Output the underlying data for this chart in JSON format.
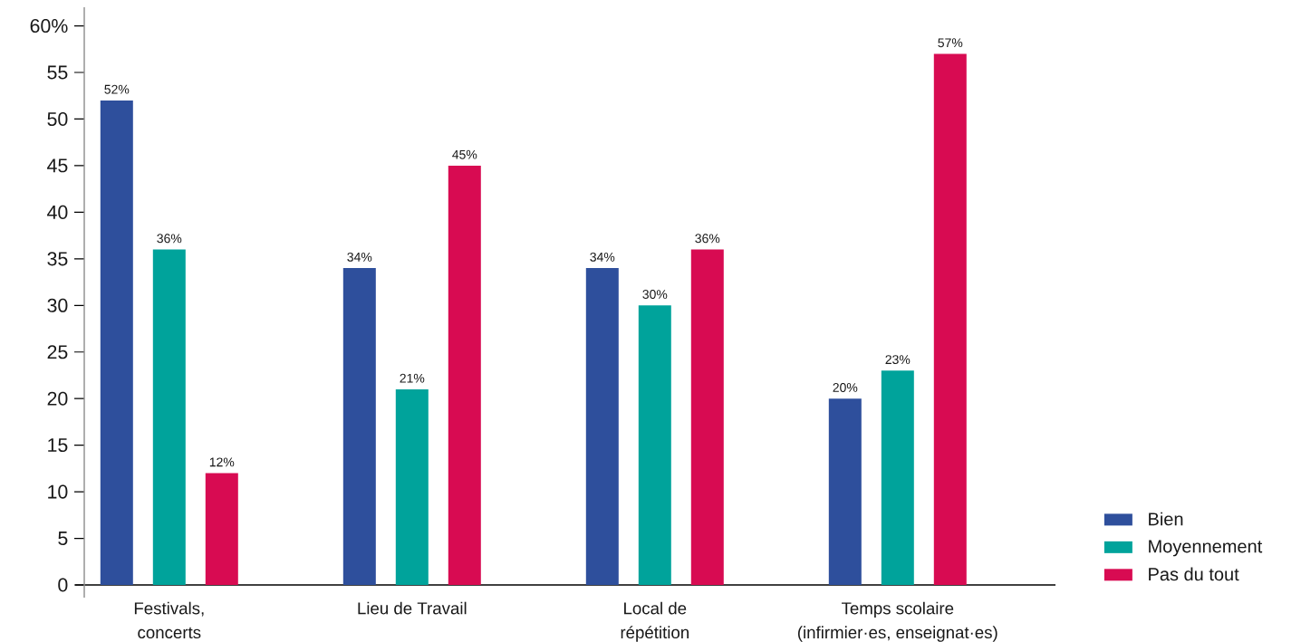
{
  "chart_data": {
    "type": "bar",
    "categories": [
      "Festivals,\nconcerts",
      "Lieu de Travail",
      "Local de\nrépétition",
      "Temps scolaire\n(infirmier·es, enseignat·es)"
    ],
    "series": [
      {
        "name": "Bien",
        "color": "#2e4f9c",
        "values": [
          52,
          34,
          34,
          20
        ],
        "value_labels": [
          "52%",
          "34%",
          "34%",
          "20%"
        ]
      },
      {
        "name": "Moyennement",
        "color": "#00a39b",
        "values": [
          36,
          21,
          30,
          23
        ],
        "value_labels": [
          "36%",
          "21%",
          "30%",
          "23%"
        ]
      },
      {
        "name": "Pas du tout",
        "color": "#d80b52",
        "values": [
          12,
          45,
          36,
          57
        ],
        "value_labels": [
          "12%",
          "45%",
          "36%",
          "57%"
        ]
      }
    ],
    "ylim": [
      0,
      62
    ],
    "yticks": [
      0,
      5,
      10,
      15,
      20,
      25,
      30,
      35,
      40,
      45,
      50,
      55,
      {
        "value": 60,
        "label": "60%"
      }
    ],
    "legend": "bottom right"
  }
}
